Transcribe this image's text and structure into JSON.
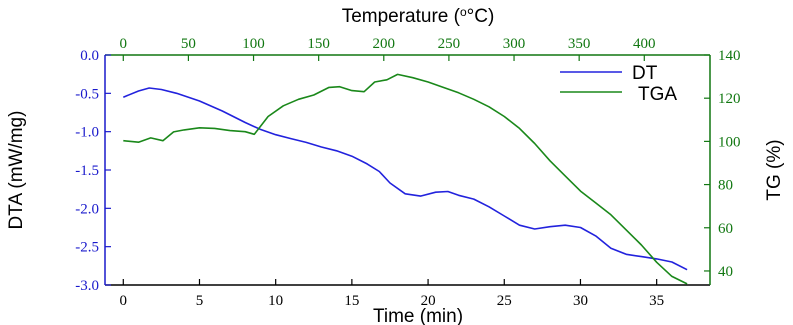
{
  "chart_data": {
    "type": "line",
    "colors": {
      "left_axis": "#1a1acc",
      "right_axis": "#117711",
      "top_axis": "#117711",
      "bottom_axis": "#000000",
      "dt": "#2222dd",
      "tga": "#1a881a"
    },
    "xlabel": "Time (min)",
    "x2label": "Temperature (",
    "x2label_unit": "°C)",
    "ylabel": "DTA (mW/mg)",
    "y2label": "TG (%)",
    "xlim": [
      -1.2,
      38.5
    ],
    "ylim": [
      -3.0,
      0.0
    ],
    "y2lim": [
      33.5,
      140
    ],
    "x_ticks": [
      "0",
      "5",
      "10",
      "15",
      "20",
      "25",
      "30",
      "35"
    ],
    "x2_ticks": [
      "0",
      "50",
      "100",
      "150",
      "200",
      "250",
      "300",
      "350",
      "400"
    ],
    "y_ticks": [
      "0.0",
      "-0.5",
      "-1.0",
      "-1.5",
      "-2.0",
      "-2.5",
      "-3.0"
    ],
    "y2_ticks": [
      "40",
      "60",
      "80",
      "100",
      "120",
      "140"
    ],
    "legend": {
      "position": "top-right",
      "entries": [
        "DT",
        "TGA"
      ]
    },
    "grid": false,
    "series": [
      {
        "name": "DT",
        "axis": "left",
        "x": [
          0,
          1,
          1.7,
          2.5,
          3.5,
          5,
          6.5,
          8,
          9,
          10,
          11,
          12,
          13,
          14,
          15,
          16,
          16.8,
          17.5,
          18.5,
          19.5,
          20.5,
          21.3,
          22,
          23,
          24,
          25,
          26,
          27,
          28,
          29,
          30,
          31,
          32,
          33,
          34,
          35,
          36,
          37
        ],
        "values": [
          -0.55,
          -0.47,
          -0.43,
          -0.45,
          -0.5,
          -0.6,
          -0.73,
          -0.88,
          -0.97,
          -1.04,
          -1.09,
          -1.14,
          -1.2,
          -1.25,
          -1.32,
          -1.42,
          -1.52,
          -1.67,
          -1.81,
          -1.84,
          -1.79,
          -1.78,
          -1.83,
          -1.88,
          -1.98,
          -2.1,
          -2.22,
          -2.27,
          -2.24,
          -2.22,
          -2.25,
          -2.36,
          -2.52,
          -2.6,
          -2.63,
          -2.66,
          -2.7,
          -2.8
        ]
      },
      {
        "name": "TGA",
        "axis": "right",
        "x": [
          0,
          1,
          1.8,
          2.6,
          3.3,
          4,
          5,
          6,
          7,
          8,
          8.6,
          9.5,
          10.5,
          11.5,
          12.5,
          13.5,
          14.2,
          15,
          15.8,
          16.5,
          17.3,
          18,
          19,
          20,
          21,
          22,
          23,
          24,
          25,
          26,
          27,
          28,
          29,
          30,
          31,
          32,
          33,
          34,
          35,
          36,
          37
        ],
        "values": [
          100.3,
          99.6,
          101.6,
          100.3,
          104.4,
          105.3,
          106.3,
          106,
          105,
          104.5,
          103.3,
          111.5,
          116.5,
          119.5,
          121.5,
          125,
          125.3,
          123.5,
          123,
          127.5,
          128.5,
          131,
          129.5,
          127.5,
          125,
          122.5,
          119.5,
          116,
          111.5,
          106,
          99,
          91,
          84,
          77,
          71.5,
          66,
          59,
          52,
          44,
          37.5,
          34
        ]
      }
    ]
  }
}
